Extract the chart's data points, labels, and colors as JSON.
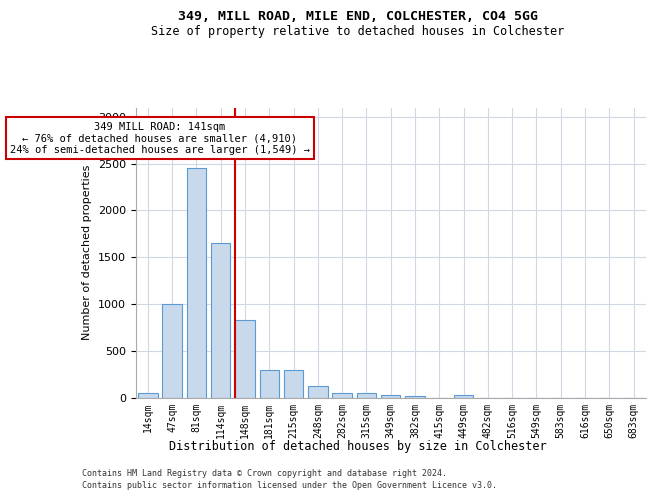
{
  "title1": "349, MILL ROAD, MILE END, COLCHESTER, CO4 5GG",
  "title2": "Size of property relative to detached houses in Colchester",
  "xlabel": "Distribution of detached houses by size in Colchester",
  "ylabel": "Number of detached properties",
  "categories": [
    "14sqm",
    "47sqm",
    "81sqm",
    "114sqm",
    "148sqm",
    "181sqm",
    "215sqm",
    "248sqm",
    "282sqm",
    "315sqm",
    "349sqm",
    "382sqm",
    "415sqm",
    "449sqm",
    "482sqm",
    "516sqm",
    "549sqm",
    "583sqm",
    "616sqm",
    "650sqm",
    "683sqm"
  ],
  "values": [
    50,
    1000,
    2450,
    1650,
    830,
    290,
    290,
    120,
    50,
    50,
    30,
    20,
    0,
    30,
    0,
    0,
    0,
    0,
    0,
    0,
    0
  ],
  "bar_color": "#c9d9ec",
  "bar_edgecolor": "#5b9bd5",
  "vline_color": "#cc0000",
  "annotation_text": "349 MILL ROAD: 141sqm\n← 76% of detached houses are smaller (4,910)\n24% of semi-detached houses are larger (1,549) →",
  "annotation_box_edgecolor": "#cc0000",
  "annotation_box_facecolor": "#ffffff",
  "ylim": [
    0,
    3100
  ],
  "yticks": [
    0,
    500,
    1000,
    1500,
    2000,
    2500,
    3000
  ],
  "footer1": "Contains HM Land Registry data © Crown copyright and database right 2024.",
  "footer2": "Contains public sector information licensed under the Open Government Licence v3.0.",
  "background_color": "#ffffff",
  "grid_color": "#d0d8e8"
}
